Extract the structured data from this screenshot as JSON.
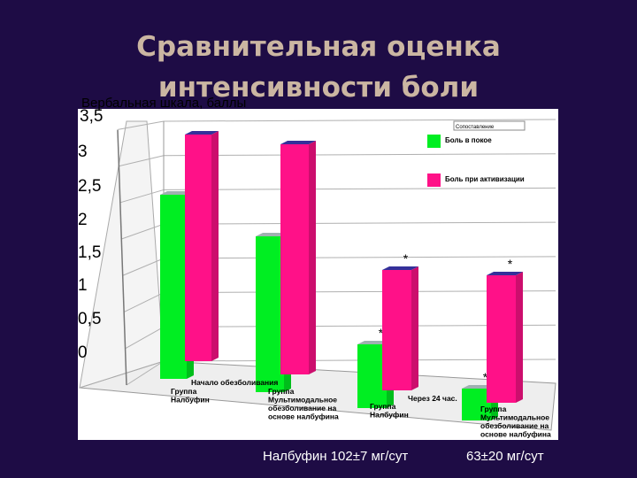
{
  "slide": {
    "title_line1": "Сравнительная оценка",
    "title_line2": "интенсивности боли"
  },
  "footer": {
    "nalbuphine_dose": "Налбуфин  102±7 мг/сут",
    "multimodal_dose": "63±20 мг/сут"
  },
  "chart_data": {
    "type": "bar",
    "ylabel": "Вербальная шкала, баллы",
    "ylim": [
      0,
      3.5
    ],
    "yticks": [
      "0",
      "0,5",
      "1",
      "1,5",
      "2",
      "2,5",
      "3",
      "3,5"
    ],
    "grid": true,
    "legend_placement": "top-right",
    "legend_title": "Сопоставление",
    "groups": [
      {
        "time_label": "Начало обезболивания",
        "categories": [
          "Группа Налбуфин",
          "Группа Мультимодальное обезболивание на основе налбуфина"
        ]
      },
      {
        "time_label": "Через 24 час.",
        "categories": [
          "Группа Налбуфин",
          "Группа Мультимодальное обезболивание на основе налбуфина"
        ]
      }
    ],
    "series": [
      {
        "name": "Боль в покое",
        "color": "#00ee22",
        "values": [
          2.6,
          2.2,
          0.9,
          0.45
        ],
        "stars": [
          "",
          "",
          "*",
          "*"
        ]
      },
      {
        "name": "Боль при активизации",
        "color": "#ff1188",
        "values": [
          3.2,
          3.25,
          1.7,
          1.8
        ],
        "stars": [
          "",
          "",
          "*",
          "*"
        ]
      }
    ]
  }
}
